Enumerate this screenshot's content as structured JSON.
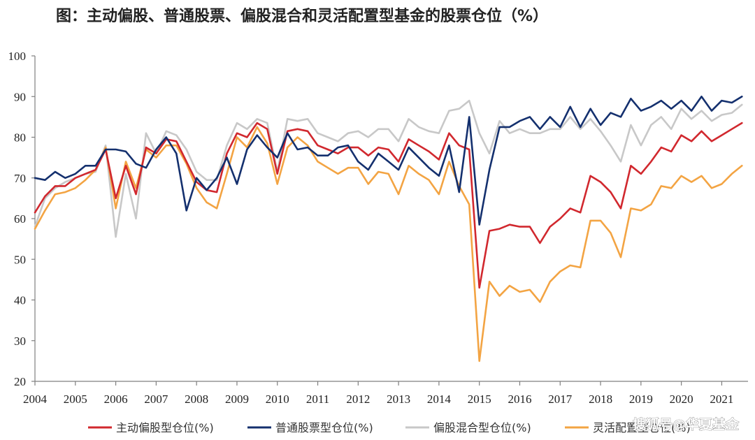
{
  "title": "图：主动偏股、普通股票、偏股混合和灵活配置型基金的股票仓位（%）",
  "watermark": "搜狐号@华夏基金",
  "colors": {
    "active_equity": "#D1282E",
    "common_stock": "#14306E",
    "equity_hybrid": "#C8C8C8",
    "flexible": "#F3A443",
    "axis": "#7F7F7F"
  },
  "chart_data": {
    "type": "line",
    "title": "图：主动偏股、普通股票、偏股混合和灵活配置型基金的股票仓位（%）",
    "xlabel": "",
    "ylabel": "",
    "ylim": [
      20,
      100
    ],
    "yticks": [
      20,
      30,
      40,
      50,
      60,
      70,
      80,
      90,
      100
    ],
    "xlim": [
      2004,
      2021.65
    ],
    "xticks": [
      "2004",
      "2005",
      "2006",
      "2007",
      "2008",
      "2009",
      "2010",
      "2011",
      "2012",
      "2013",
      "2014",
      "2015",
      "2016",
      "2017",
      "2018",
      "2019",
      "2020",
      "2021"
    ],
    "grid": false,
    "legend_position": "bottom",
    "x": [
      2004.0,
      2004.25,
      2004.5,
      2004.75,
      2005.0,
      2005.25,
      2005.5,
      2005.75,
      2006.0,
      2006.25,
      2006.5,
      2006.75,
      2007.0,
      2007.25,
      2007.5,
      2007.75,
      2008.0,
      2008.25,
      2008.5,
      2008.75,
      2009.0,
      2009.25,
      2009.5,
      2009.75,
      2010.0,
      2010.25,
      2010.5,
      2010.75,
      2011.0,
      2011.25,
      2011.5,
      2011.75,
      2012.0,
      2012.25,
      2012.5,
      2012.75,
      2013.0,
      2013.25,
      2013.5,
      2013.75,
      2014.0,
      2014.25,
      2014.5,
      2014.75,
      2015.0,
      2015.25,
      2015.5,
      2015.75,
      2016.0,
      2016.25,
      2016.5,
      2016.75,
      2017.0,
      2017.25,
      2017.5,
      2017.75,
      2018.0,
      2018.25,
      2018.5,
      2018.75,
      2019.0,
      2019.25,
      2019.5,
      2019.75,
      2020.0,
      2020.25,
      2020.5,
      2020.75,
      2021.0,
      2021.25,
      2021.5
    ],
    "series": [
      {
        "name": "主动偏股型仓位(%)",
        "color": "#D1282E",
        "values": [
          61.5,
          65.5,
          68,
          68,
          70,
          71,
          72,
          77,
          65,
          73,
          66,
          77.5,
          76,
          79.5,
          79,
          74,
          69,
          67,
          66.5,
          76,
          81,
          80,
          83.5,
          82,
          71,
          81.5,
          82,
          81.5,
          78,
          77,
          76,
          77.5,
          77.5,
          75.5,
          77.5,
          77,
          74,
          79.5,
          78,
          76.5,
          74.5,
          81,
          78,
          77,
          43,
          57,
          57.5,
          58.5,
          58,
          58,
          54,
          58,
          60,
          62.5,
          61.5,
          70.5,
          69,
          66.5,
          62.5,
          73,
          71,
          74,
          77.5,
          76.5,
          80.5,
          79,
          81.5,
          79,
          80.5,
          82,
          83.5
        ]
      },
      {
        "name": "普通股票型仓位(%)",
        "color": "#14306E",
        "values": [
          70,
          69.5,
          71.5,
          70,
          71,
          73,
          73,
          77,
          77,
          76.5,
          73.5,
          72.5,
          77,
          80,
          76,
          62,
          70,
          67,
          70,
          75,
          68.5,
          77,
          80.5,
          77.5,
          75,
          81,
          77,
          77.5,
          75.5,
          75.5,
          77.5,
          78,
          74,
          72,
          76,
          74,
          72,
          77.5,
          75,
          72.5,
          70.5,
          78,
          66.5,
          85,
          58.5,
          72,
          82.5,
          82.5,
          84,
          85,
          82,
          85,
          82.5,
          87.5,
          82.5,
          87,
          83,
          86,
          85,
          89.5,
          86.5,
          87.5,
          89,
          87,
          89,
          86.5,
          90,
          86.5,
          89,
          88.5,
          90
        ]
      },
      {
        "name": "偏股混合型仓位(%)",
        "color": "#C8C8C8",
        "values": [
          58,
          65,
          67.5,
          69,
          70,
          71,
          71.5,
          78,
          55.5,
          71,
          60,
          81,
          76,
          81.5,
          80.5,
          77,
          71.5,
          69.5,
          69.5,
          78,
          83.5,
          82,
          84.5,
          83.5,
          71.5,
          84.5,
          84,
          84.5,
          81,
          80,
          79,
          81,
          81.5,
          80,
          82,
          82,
          79,
          84.5,
          82.5,
          81.5,
          81,
          86.5,
          87,
          89,
          81,
          76,
          84,
          81,
          82,
          81,
          81,
          82,
          82,
          85,
          82,
          84.5,
          81.5,
          78,
          74,
          83,
          78,
          83,
          85,
          82,
          87,
          84.5,
          86.5,
          84,
          85.5,
          86,
          88
        ]
      },
      {
        "name": "灵活配置型仓位(%)",
        "color": "#F3A443",
        "values": [
          57.5,
          62,
          66,
          66.5,
          67.5,
          69.5,
          72,
          77.5,
          62.5,
          74,
          67.5,
          77,
          75,
          78,
          78,
          73.5,
          67.5,
          64,
          62.5,
          71,
          80,
          77.5,
          82.5,
          78.5,
          68.5,
          77.5,
          80,
          78,
          74,
          72.5,
          71,
          72.5,
          72.5,
          68.5,
          71.5,
          71,
          66,
          73,
          71,
          69.5,
          66,
          74,
          68,
          63.5,
          25,
          44.5,
          41,
          43.5,
          42,
          42.5,
          39.5,
          44.5,
          47,
          48.5,
          48,
          59.5,
          59.5,
          56.5,
          50.5,
          62.5,
          62,
          63.5,
          68,
          67.5,
          70.5,
          69,
          70.5,
          67.5,
          68.5,
          71,
          73
        ]
      }
    ]
  }
}
